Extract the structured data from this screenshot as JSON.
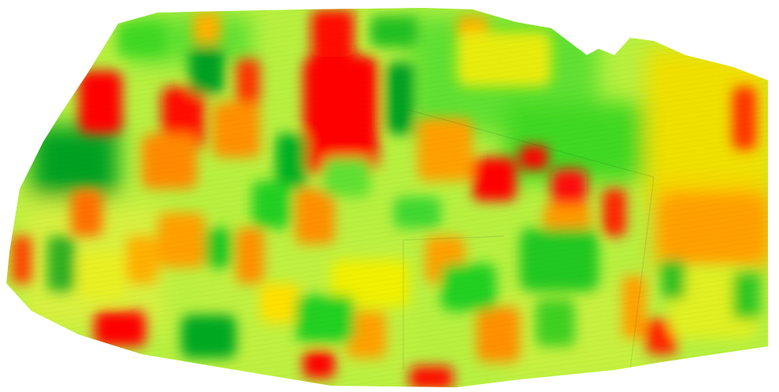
{
  "map": {
    "kind": "vegetation-index-orthomosaic",
    "background": "#ffffff",
    "palette": {
      "very_low": "#ff0000",
      "low": "#ff7a00",
      "mid_low": "#ffb000",
      "mid": "#ffe600",
      "mid_high": "#c8f040",
      "high": "#40e020",
      "very_high": "#00a020",
      "dense": "#008a18"
    }
  }
}
